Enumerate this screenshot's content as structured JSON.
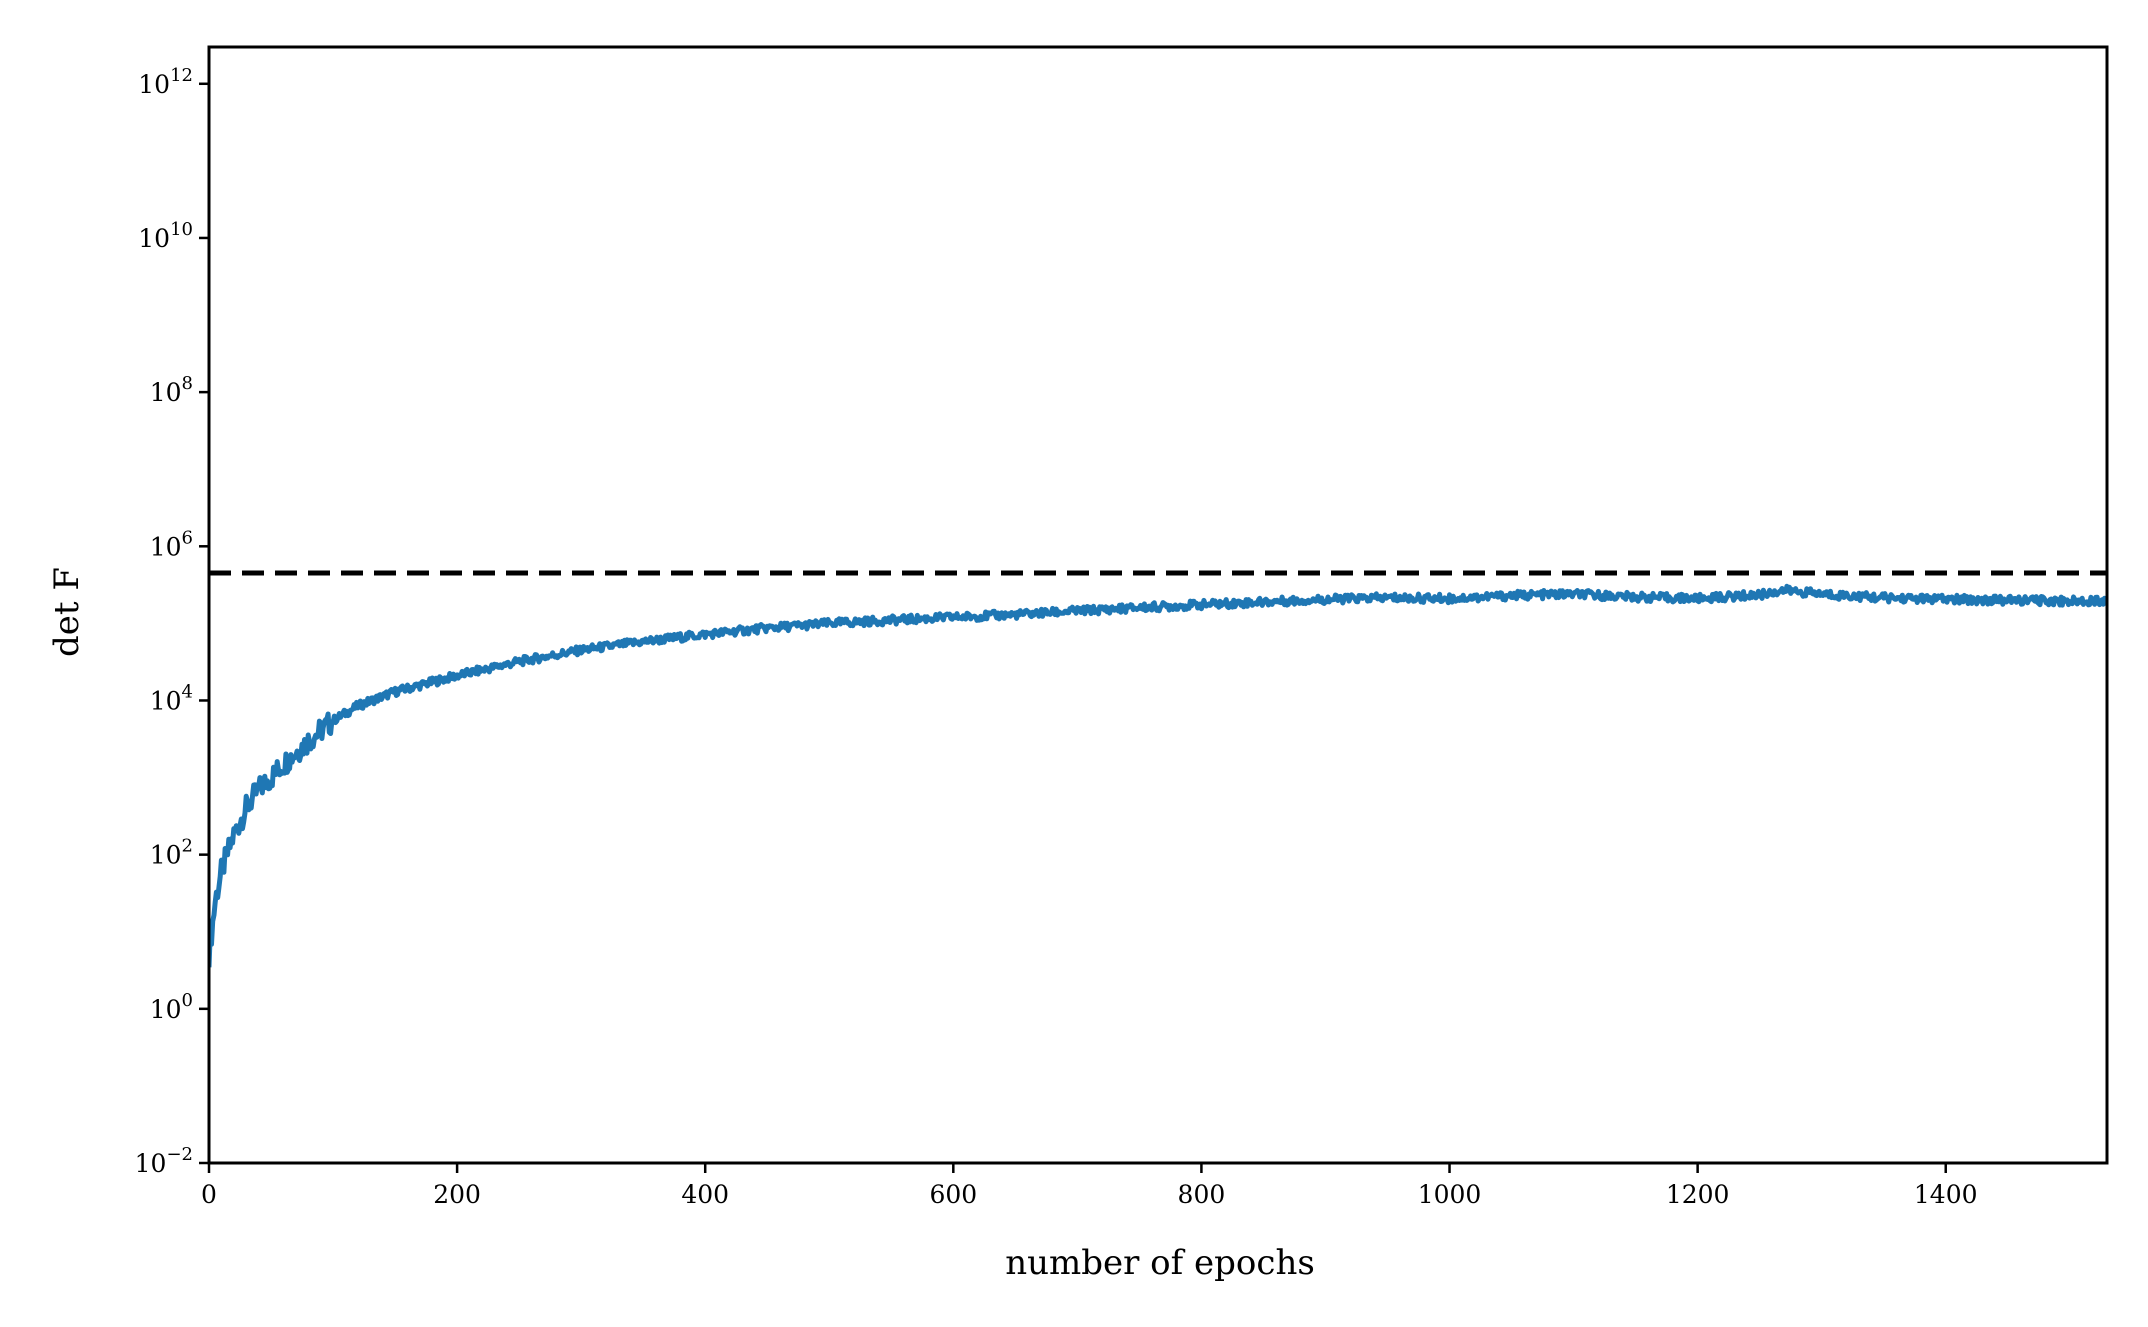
{
  "chart_data": {
    "type": "line",
    "title": "",
    "xlabel": "number of epochs",
    "ylabel": "det F",
    "yscale": "log",
    "xlim": [
      0,
      1530
    ],
    "ylim": [
      0.01,
      3000000000000.0
    ],
    "grid": false,
    "x_ticks": [
      0,
      200,
      400,
      600,
      800,
      1000,
      1200,
      1400
    ],
    "x_tick_labels": [
      "0",
      "200",
      "400",
      "600",
      "800",
      "1000",
      "1200",
      "1400"
    ],
    "y_ticks": [
      0.01,
      1,
      100,
      10000,
      1000000,
      100000000,
      10000000000,
      1000000000000
    ],
    "y_tick_labels": [
      {
        "base": "10",
        "exp": "−2"
      },
      {
        "base": "10",
        "exp": "0"
      },
      {
        "base": "10",
        "exp": "2"
      },
      {
        "base": "10",
        "exp": "4"
      },
      {
        "base": "10",
        "exp": "6"
      },
      {
        "base": "10",
        "exp": "8"
      },
      {
        "base": "10",
        "exp": "10"
      },
      {
        "base": "10",
        "exp": "12"
      }
    ],
    "series": [
      {
        "color": "#1f77b4",
        "style": "solid",
        "x": [
          0,
          5,
          10,
          20,
          30,
          40,
          50,
          60,
          80,
          100,
          120,
          150,
          200,
          250,
          300,
          350,
          400,
          450,
          500,
          550,
          600,
          650,
          700,
          750,
          800,
          850,
          900,
          950,
          1000,
          1050,
          1100,
          1150,
          1200,
          1250,
          1270,
          1300,
          1350,
          1400,
          1450,
          1500,
          1530
        ],
        "y": [
          5,
          25,
          60,
          180,
          400,
          700,
          1000,
          1500,
          3000,
          5500,
          8500,
          13000,
          21000,
          32000,
          45000,
          58000,
          72000,
          87000,
          100000,
          110000,
          120000,
          130000,
          145000,
          160000,
          175000,
          190000,
          205000,
          215000,
          210000,
          230000,
          240000,
          220000,
          210000,
          235000,
          270000,
          240000,
          215000,
          205000,
          200000,
          195000,
          200000
        ]
      },
      {
        "color": "#000000",
        "style": "dashed",
        "x": [
          0,
          1530
        ],
        "y": [
          450000,
          450000
        ]
      }
    ]
  }
}
